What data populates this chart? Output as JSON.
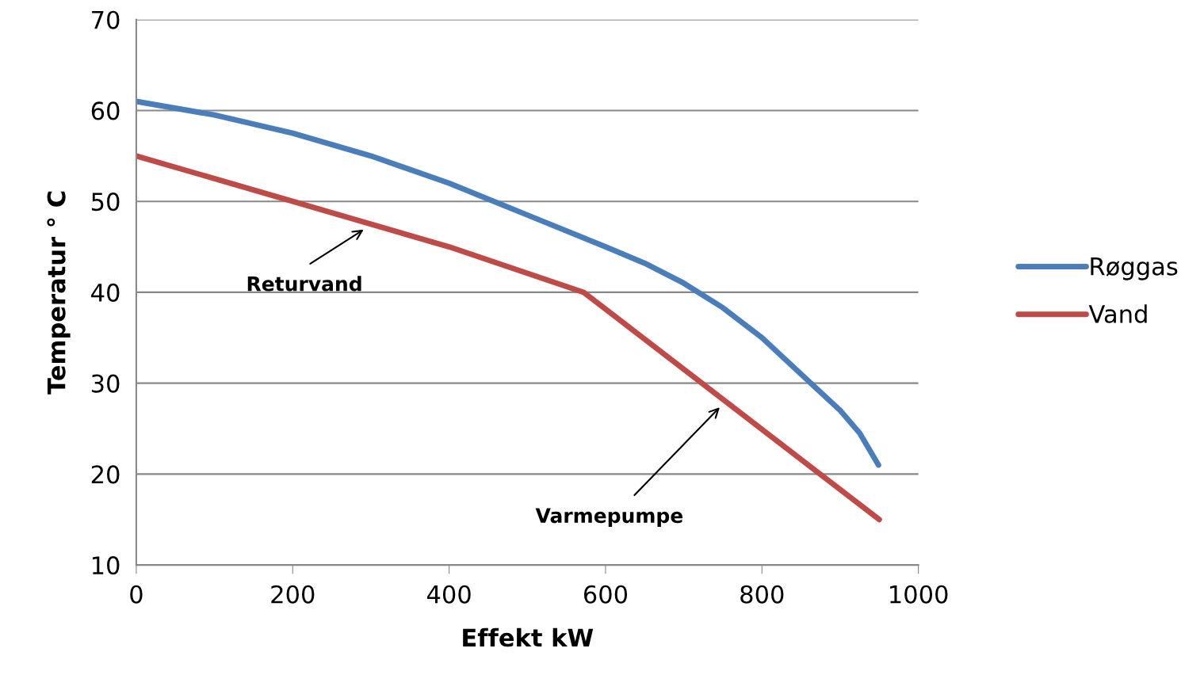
{
  "chart_data": {
    "type": "line",
    "xlabel": "Effekt kW",
    "ylabel": "Temperatur ° C",
    "x": [
      0,
      100,
      200,
      300,
      400,
      500,
      600,
      650,
      700,
      750,
      800,
      850,
      900,
      925,
      949
    ],
    "series": [
      {
        "name": "Røggas",
        "color": "#4a7ebb",
        "values": [
          61,
          59.5,
          57.5,
          55,
          52,
          48.5,
          45,
          43.2,
          41,
          38.3,
          35,
          31,
          27,
          24.5,
          21
        ]
      },
      {
        "name": "Vand",
        "color": "#be4b48",
        "x": [
          0,
          200,
          400,
          572,
          950
        ],
        "values": [
          55,
          50,
          45,
          40,
          15
        ]
      }
    ],
    "xlim": [
      0,
      1000
    ],
    "xticks": [
      0,
      200,
      400,
      600,
      800,
      1000
    ],
    "ylim": [
      10,
      70
    ],
    "yticks": [
      10,
      20,
      30,
      40,
      50,
      60,
      70
    ],
    "grid": "y",
    "legend": "right",
    "marker": "none",
    "line_style": "solid",
    "annotations": [
      "Returvand",
      "Varmepumpe"
    ]
  }
}
